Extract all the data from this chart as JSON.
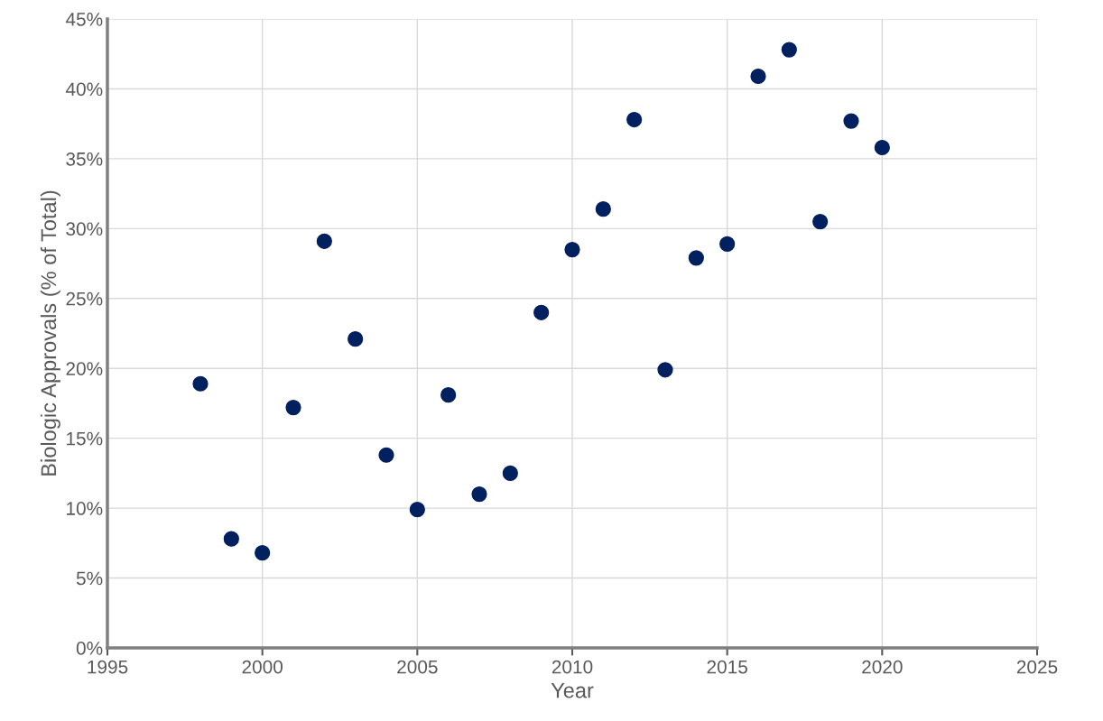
{
  "chart_data": {
    "type": "scatter",
    "xlabel": "Year",
    "ylabel": "Biologic Approvals (% of Total)",
    "x": [
      1998,
      1999,
      2000,
      2001,
      2002,
      2003,
      2004,
      2005,
      2006,
      2007,
      2008,
      2009,
      2010,
      2011,
      2012,
      2013,
      2014,
      2015,
      2016,
      2017,
      2018,
      2019,
      2020
    ],
    "series": [
      {
        "color": "#002060",
        "values": [
          18.9,
          7.8,
          6.8,
          17.2,
          29.1,
          22.1,
          13.8,
          9.9,
          18.1,
          11.0,
          12.5,
          24.0,
          28.5,
          31.4,
          37.8,
          19.9,
          27.9,
          28.9,
          40.9,
          42.8,
          30.5,
          37.7,
          35.8
        ]
      }
    ],
    "xlim": [
      1995,
      2025
    ],
    "xticks": [
      1995,
      2000,
      2005,
      2010,
      2015,
      2020,
      2025
    ],
    "ylim": [
      0,
      45
    ],
    "yticks": [
      {
        "value": 0,
        "label": "0%"
      },
      {
        "value": 5,
        "label": "5%"
      },
      {
        "value": 10,
        "label": "10%"
      },
      {
        "value": 15,
        "label": "15%"
      },
      {
        "value": 20,
        "label": "20%"
      },
      {
        "value": 25,
        "label": "25%"
      },
      {
        "value": 30,
        "label": "30%"
      },
      {
        "value": 35,
        "label": "35%"
      },
      {
        "value": 40,
        "label": "40%"
      },
      {
        "value": 45,
        "label": "45%"
      }
    ],
    "grid": true,
    "marker": "circle",
    "legend": false
  }
}
